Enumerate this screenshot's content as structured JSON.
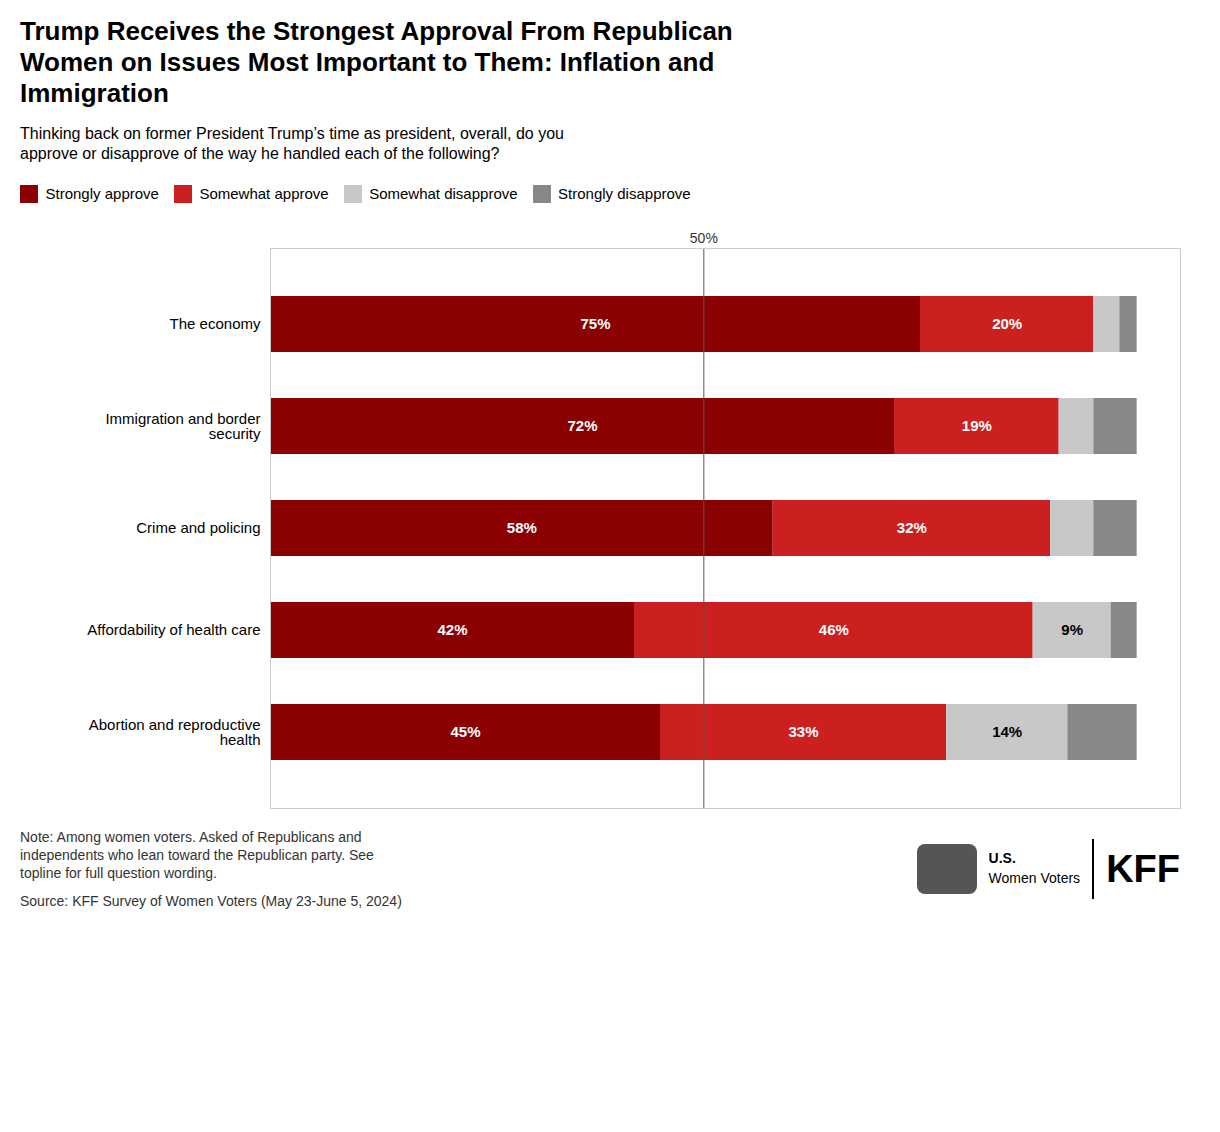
{
  "chart_data": {
    "type": "bar",
    "orientation": "horizontal",
    "stacked": true,
    "title": "Trump Receives the Strongest Approval From Republican\nWomen on Issues Most Important to Them: Inflation and\nImmigration",
    "subtitle": "Thinking back on former President Trump’s time as president, overall, do you\napprove or disapprove of the way he handled each of the following?",
    "categories": [
      "The economy",
      "Immigration and border\nsecurity",
      "Crime and policing",
      "Affordability of health care",
      "Abortion and reproductive\nhealth"
    ],
    "series": [
      {
        "name": "Strongly approve",
        "color": "#8B0000",
        "values": [
          75,
          72,
          58,
          42,
          45
        ],
        "value_labels": [
          "75%",
          "72%",
          "58%",
          "42%",
          "45%"
        ]
      },
      {
        "name": "Somewhat approve",
        "color": "#CC2020",
        "values": [
          20,
          19,
          32,
          46,
          33
        ],
        "value_labels": [
          "20%",
          "19%",
          "32%",
          "46%",
          "33%"
        ]
      },
      {
        "name": "Somewhat disapprove",
        "color": "#C8C8C8",
        "values": [
          3,
          4,
          5,
          9,
          14
        ],
        "value_labels": [
          null,
          null,
          null,
          "9%",
          "14%"
        ]
      },
      {
        "name": "Strongly disapprove",
        "color": "#888888",
        "values": [
          2,
          5,
          5,
          3,
          8
        ],
        "value_labels": [
          null,
          null,
          null,
          null,
          null
        ]
      }
    ],
    "xlim": [
      0,
      105
    ],
    "tick_labels": "y",
    "grid": false,
    "data_labels": true,
    "annotations": [
      {
        "x": 50,
        "text": "50%"
      }
    ],
    "note": "Note: Among women voters. Asked of Republicans and\nindependents who lean toward the Republican party. See\ntopline for full question wording.",
    "source": "Source: KFF Survey of Women Voters (May 23-June 5, 2024)",
    "logo_text": [
      "U.S.",
      "Women Voters",
      "KFF"
    ]
  }
}
